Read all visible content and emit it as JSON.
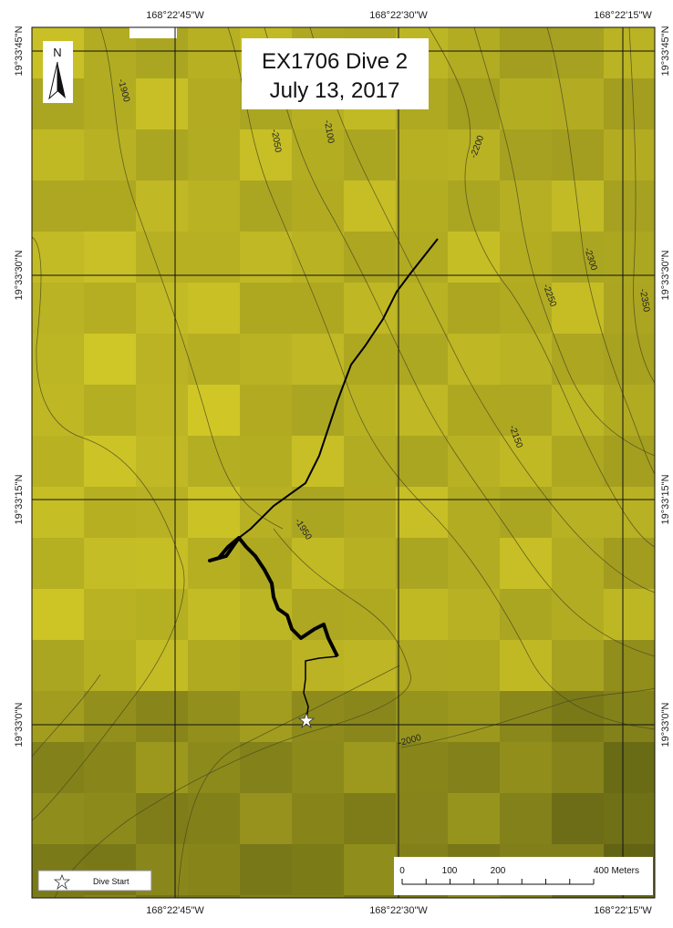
{
  "map": {
    "title": "EX1706 Dive 2",
    "date": "July 13, 2017",
    "north_label": "N",
    "longitude_labels": [
      "168°22'45\"W",
      "168°22'30\"W",
      "168°22'15\"W"
    ],
    "latitude_labels": [
      "19°33'45\"N",
      "19°33'30\"N",
      "19°33'15\"N",
      "19°33'0\"N"
    ],
    "contour_labels": [
      "-1900",
      "-2050",
      "-2100",
      "-2200",
      "-2300",
      "-2250",
      "-2350",
      "-2150",
      "-1950",
      "-2000"
    ],
    "legend": {
      "dive_start": "Dive Start"
    },
    "scale_bar": {
      "ticks": [
        "0",
        "100",
        "200",
        "400 Meters"
      ]
    }
  }
}
